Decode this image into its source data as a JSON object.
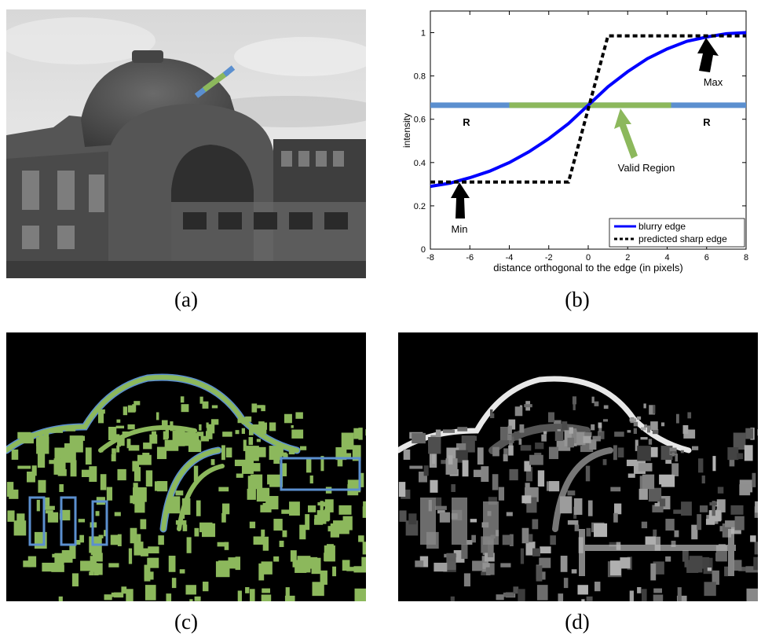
{
  "captions": {
    "a": "(a)",
    "b": "(b)",
    "c": "(c)",
    "d": "(d)"
  },
  "chart_data": {
    "type": "line",
    "xlabel": "distance orthogonal to the edge (in pixels)",
    "ylabel": "intensity",
    "xlim": [
      -8,
      8
    ],
    "ylim": [
      0,
      1.1
    ],
    "xticks": [
      -8,
      -6,
      -4,
      -2,
      0,
      2,
      4,
      6,
      8
    ],
    "yticks": [
      0,
      0.2,
      0.4,
      0.6,
      0.8,
      1
    ],
    "grid": false,
    "legend_position": "bottom-right",
    "series": [
      {
        "name": "blurry edge",
        "color": "#0000ff",
        "style": "solid",
        "x": [
          -8,
          -7,
          -6,
          -5,
          -4,
          -3,
          -2,
          -1,
          0,
          1,
          2,
          3,
          4,
          5,
          6,
          7,
          8
        ],
        "y": [
          0.29,
          0.305,
          0.33,
          0.36,
          0.4,
          0.45,
          0.51,
          0.58,
          0.665,
          0.75,
          0.82,
          0.88,
          0.925,
          0.96,
          0.98,
          0.995,
          1.0
        ]
      },
      {
        "name": "predicted sharp edge",
        "color": "#000000",
        "style": "dashed",
        "x": [
          -8,
          -1,
          1,
          8
        ],
        "y": [
          0.31,
          0.31,
          0.985,
          0.985
        ]
      }
    ],
    "bands": [
      {
        "label": "R",
        "color": "#5b8fcf",
        "x": [
          -8,
          8
        ],
        "y": 0.665
      },
      {
        "label": "Valid Region",
        "color": "#8cb85c",
        "x": [
          -4,
          4.2
        ],
        "y": 0.665
      }
    ],
    "annotations": {
      "max": "Max",
      "min": "Min",
      "valid": "Valid Region",
      "r_left": "R",
      "r_right": "R"
    }
  }
}
